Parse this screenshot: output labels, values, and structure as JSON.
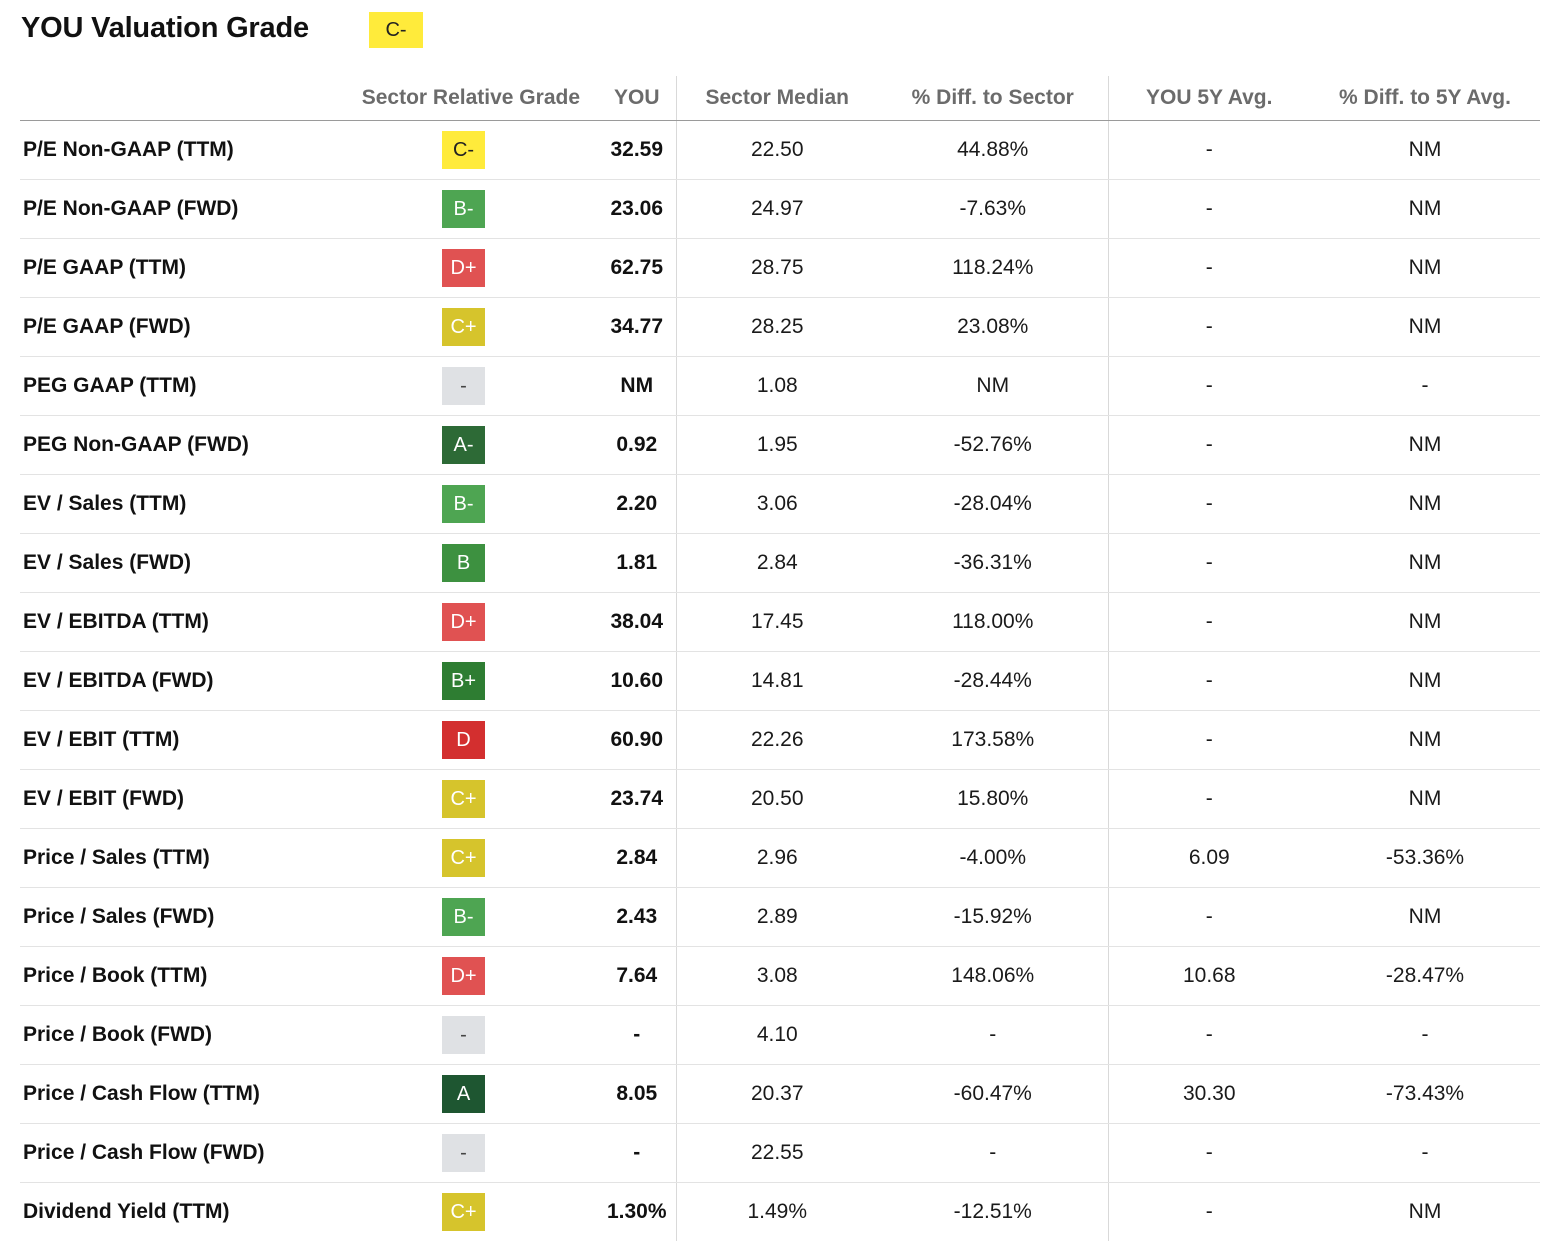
{
  "page": {
    "title": "YOU Valuation Grade",
    "overall_grade": "C-",
    "overall_grade_color": "#ffeb3b"
  },
  "grade_colors": {
    "A": "#1e5631",
    "A-": "#2d6a36",
    "B+": "#2e7d32",
    "B": "#3d9140",
    "B-": "#4ea552",
    "C+": "#d6c42c",
    "C-": "#ffeb3b",
    "D+": "#e05252",
    "D": "#d32f2f",
    "-": "#dfe1e4"
  },
  "table": {
    "headers": [
      "",
      "Sector Relative Grade",
      "YOU",
      "Sector Median",
      "% Diff. to Sector",
      "YOU 5Y Avg.",
      "% Diff. to 5Y Avg."
    ],
    "rows": [
      {
        "metric": "P/E Non-GAAP (TTM)",
        "grade": "C-",
        "you": "32.59",
        "sector_median": "22.50",
        "diff_sector": "44.88%",
        "avg_5y": "-",
        "diff_5y": "NM"
      },
      {
        "metric": "P/E Non-GAAP (FWD)",
        "grade": "B-",
        "you": "23.06",
        "sector_median": "24.97",
        "diff_sector": "-7.63%",
        "avg_5y": "-",
        "diff_5y": "NM"
      },
      {
        "metric": "P/E GAAP (TTM)",
        "grade": "D+",
        "you": "62.75",
        "sector_median": "28.75",
        "diff_sector": "118.24%",
        "avg_5y": "-",
        "diff_5y": "NM"
      },
      {
        "metric": "P/E GAAP (FWD)",
        "grade": "C+",
        "you": "34.77",
        "sector_median": "28.25",
        "diff_sector": "23.08%",
        "avg_5y": "-",
        "diff_5y": "NM"
      },
      {
        "metric": "PEG GAAP (TTM)",
        "grade": "-",
        "you": "NM",
        "sector_median": "1.08",
        "diff_sector": "NM",
        "avg_5y": "-",
        "diff_5y": "-"
      },
      {
        "metric": "PEG Non-GAAP (FWD)",
        "grade": "A-",
        "you": "0.92",
        "sector_median": "1.95",
        "diff_sector": "-52.76%",
        "avg_5y": "-",
        "diff_5y": "NM"
      },
      {
        "metric": "EV / Sales (TTM)",
        "grade": "B-",
        "you": "2.20",
        "sector_median": "3.06",
        "diff_sector": "-28.04%",
        "avg_5y": "-",
        "diff_5y": "NM"
      },
      {
        "metric": "EV / Sales (FWD)",
        "grade": "B",
        "you": "1.81",
        "sector_median": "2.84",
        "diff_sector": "-36.31%",
        "avg_5y": "-",
        "diff_5y": "NM"
      },
      {
        "metric": "EV / EBITDA (TTM)",
        "grade": "D+",
        "you": "38.04",
        "sector_median": "17.45",
        "diff_sector": "118.00%",
        "avg_5y": "-",
        "diff_5y": "NM"
      },
      {
        "metric": "EV / EBITDA (FWD)",
        "grade": "B+",
        "you": "10.60",
        "sector_median": "14.81",
        "diff_sector": "-28.44%",
        "avg_5y": "-",
        "diff_5y": "NM"
      },
      {
        "metric": "EV / EBIT (TTM)",
        "grade": "D",
        "you": "60.90",
        "sector_median": "22.26",
        "diff_sector": "173.58%",
        "avg_5y": "-",
        "diff_5y": "NM"
      },
      {
        "metric": "EV / EBIT (FWD)",
        "grade": "C+",
        "you": "23.74",
        "sector_median": "20.50",
        "diff_sector": "15.80%",
        "avg_5y": "-",
        "diff_5y": "NM"
      },
      {
        "metric": "Price / Sales (TTM)",
        "grade": "C+",
        "you": "2.84",
        "sector_median": "2.96",
        "diff_sector": "-4.00%",
        "avg_5y": "6.09",
        "diff_5y": "-53.36%"
      },
      {
        "metric": "Price / Sales (FWD)",
        "grade": "B-",
        "you": "2.43",
        "sector_median": "2.89",
        "diff_sector": "-15.92%",
        "avg_5y": "-",
        "diff_5y": "NM"
      },
      {
        "metric": "Price / Book (TTM)",
        "grade": "D+",
        "you": "7.64",
        "sector_median": "3.08",
        "diff_sector": "148.06%",
        "avg_5y": "10.68",
        "diff_5y": "-28.47%"
      },
      {
        "metric": "Price / Book (FWD)",
        "grade": "-",
        "you": "-",
        "sector_median": "4.10",
        "diff_sector": "-",
        "avg_5y": "-",
        "diff_5y": "-"
      },
      {
        "metric": "Price / Cash Flow (TTM)",
        "grade": "A",
        "you": "8.05",
        "sector_median": "20.37",
        "diff_sector": "-60.47%",
        "avg_5y": "30.30",
        "diff_5y": "-73.43%"
      },
      {
        "metric": "Price / Cash Flow (FWD)",
        "grade": "-",
        "you": "-",
        "sector_median": "22.55",
        "diff_sector": "-",
        "avg_5y": "-",
        "diff_5y": "-"
      },
      {
        "metric": "Dividend Yield (TTM)",
        "grade": "C+",
        "you": "1.30%",
        "sector_median": "1.49%",
        "diff_sector": "-12.51%",
        "avg_5y": "-",
        "diff_5y": "NM"
      }
    ]
  }
}
